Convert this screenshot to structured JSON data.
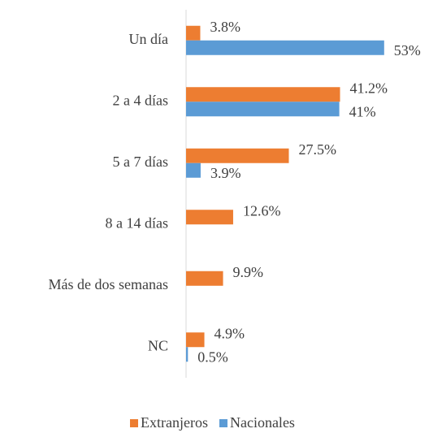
{
  "chart_data": {
    "type": "hbar",
    "categories": [
      "Un día",
      "2 a 4 días",
      "5 a 7 días",
      "8 a 14 días",
      "Más de dos semanas",
      "NC"
    ],
    "series": [
      {
        "name": "Extranjeros",
        "color": "#ED7D31",
        "values": [
          3.8,
          41.2,
          27.5,
          12.6,
          9.9,
          4.9
        ],
        "value_labels": [
          "3.8%",
          "41.2%",
          "27.5%",
          "12.6%",
          "9.9%",
          "4.9%"
        ]
      },
      {
        "name": "Nacionales",
        "color": "#5B9BD5",
        "values": [
          53,
          41,
          3.9,
          null,
          null,
          0.5
        ],
        "value_labels": [
          "53%",
          "41%",
          "3.9%",
          null,
          null,
          "0.5%"
        ]
      }
    ],
    "xlim": [
      0,
      60
    ],
    "legend": "bottom"
  }
}
